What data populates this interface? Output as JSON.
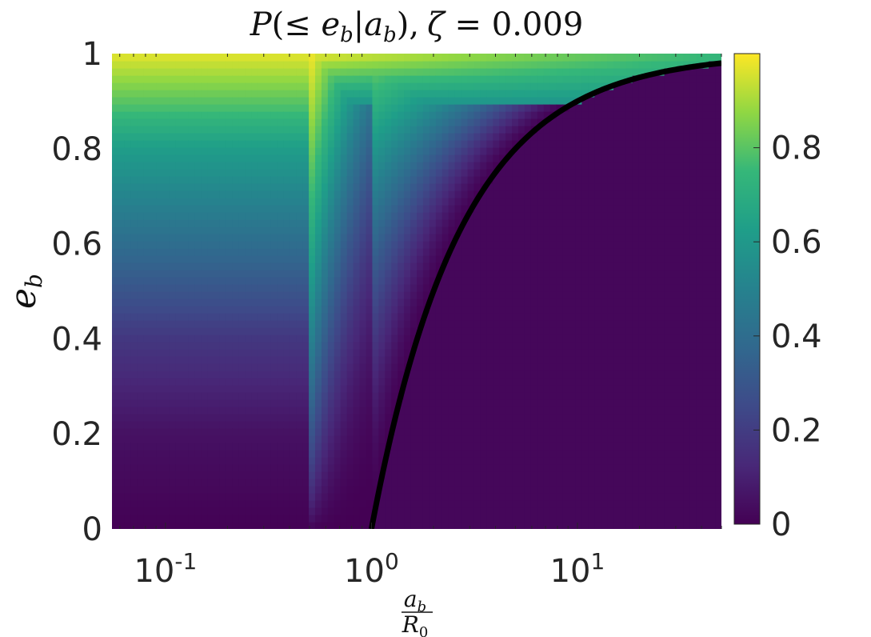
{
  "chart_data": {
    "type": "heatmap",
    "title": "P(≤ e_b | a_b), ζ = 0.009",
    "title_parts": {
      "p": "P",
      "open": "(≤ ",
      "e": "e",
      "e_sub": "b",
      "bar": "|",
      "a": "a",
      "a_sub": "b",
      "close": "),",
      "zeta": "ζ",
      "eq": " = 0.009"
    },
    "xlabel": {
      "numerator": "a",
      "numerator_sub": "b",
      "denominator": "R",
      "denominator_sub": "0"
    },
    "ylabel": {
      "main": "e",
      "sub": "b"
    },
    "x_scale": "log",
    "x_range": [
      0.055,
      50
    ],
    "y_range": [
      0,
      1
    ],
    "x_ticks": [
      {
        "value": 0.1,
        "base": "10",
        "exp": "-1"
      },
      {
        "value": 1,
        "base": "10",
        "exp": "0"
      },
      {
        "value": 10,
        "base": "10",
        "exp": "1"
      }
    ],
    "y_ticks": [
      {
        "value": 0,
        "label": "0"
      },
      {
        "value": 0.2,
        "label": "0.2"
      },
      {
        "value": 0.4,
        "label": "0.4"
      },
      {
        "value": 0.6,
        "label": "0.6"
      },
      {
        "value": 0.8,
        "label": "0.8"
      },
      {
        "value": 1,
        "label": "1"
      }
    ],
    "colorbar": {
      "range": [
        0,
        1
      ],
      "colormap": "viridis",
      "ticks": [
        {
          "value": 0,
          "label": "0"
        },
        {
          "value": 0.2,
          "label": "0.2"
        },
        {
          "value": 0.4,
          "label": "0.4"
        },
        {
          "value": 0.6,
          "label": "0.6"
        },
        {
          "value": 0.8,
          "label": "0.8"
        }
      ]
    },
    "boundary_curve": {
      "description_equation": "e_b = 1 - R0/a_b",
      "color": "#000000",
      "x": [
        1.0,
        1.1,
        1.25,
        1.5,
        2.0,
        3.0,
        4.0,
        5.0,
        7.0,
        10.0,
        15.0,
        20.0,
        30.0,
        50.0
      ],
      "y": [
        0.0,
        0.091,
        0.2,
        0.333,
        0.5,
        0.667,
        0.75,
        0.8,
        0.857,
        0.9,
        0.933,
        0.95,
        0.967,
        0.98
      ]
    },
    "probability_field": {
      "low_a_region": {
        "x_max": 0.5,
        "value_at_e": [
          [
            0,
            0.0
          ],
          [
            0.2,
            0.05
          ],
          [
            0.4,
            0.18
          ],
          [
            0.6,
            0.4
          ],
          [
            0.8,
            0.62
          ],
          [
            0.9,
            0.8
          ],
          [
            1.0,
            0.97
          ]
        ]
      },
      "peak_x": 0.5,
      "outside_boundary_value": 0.02
    }
  }
}
